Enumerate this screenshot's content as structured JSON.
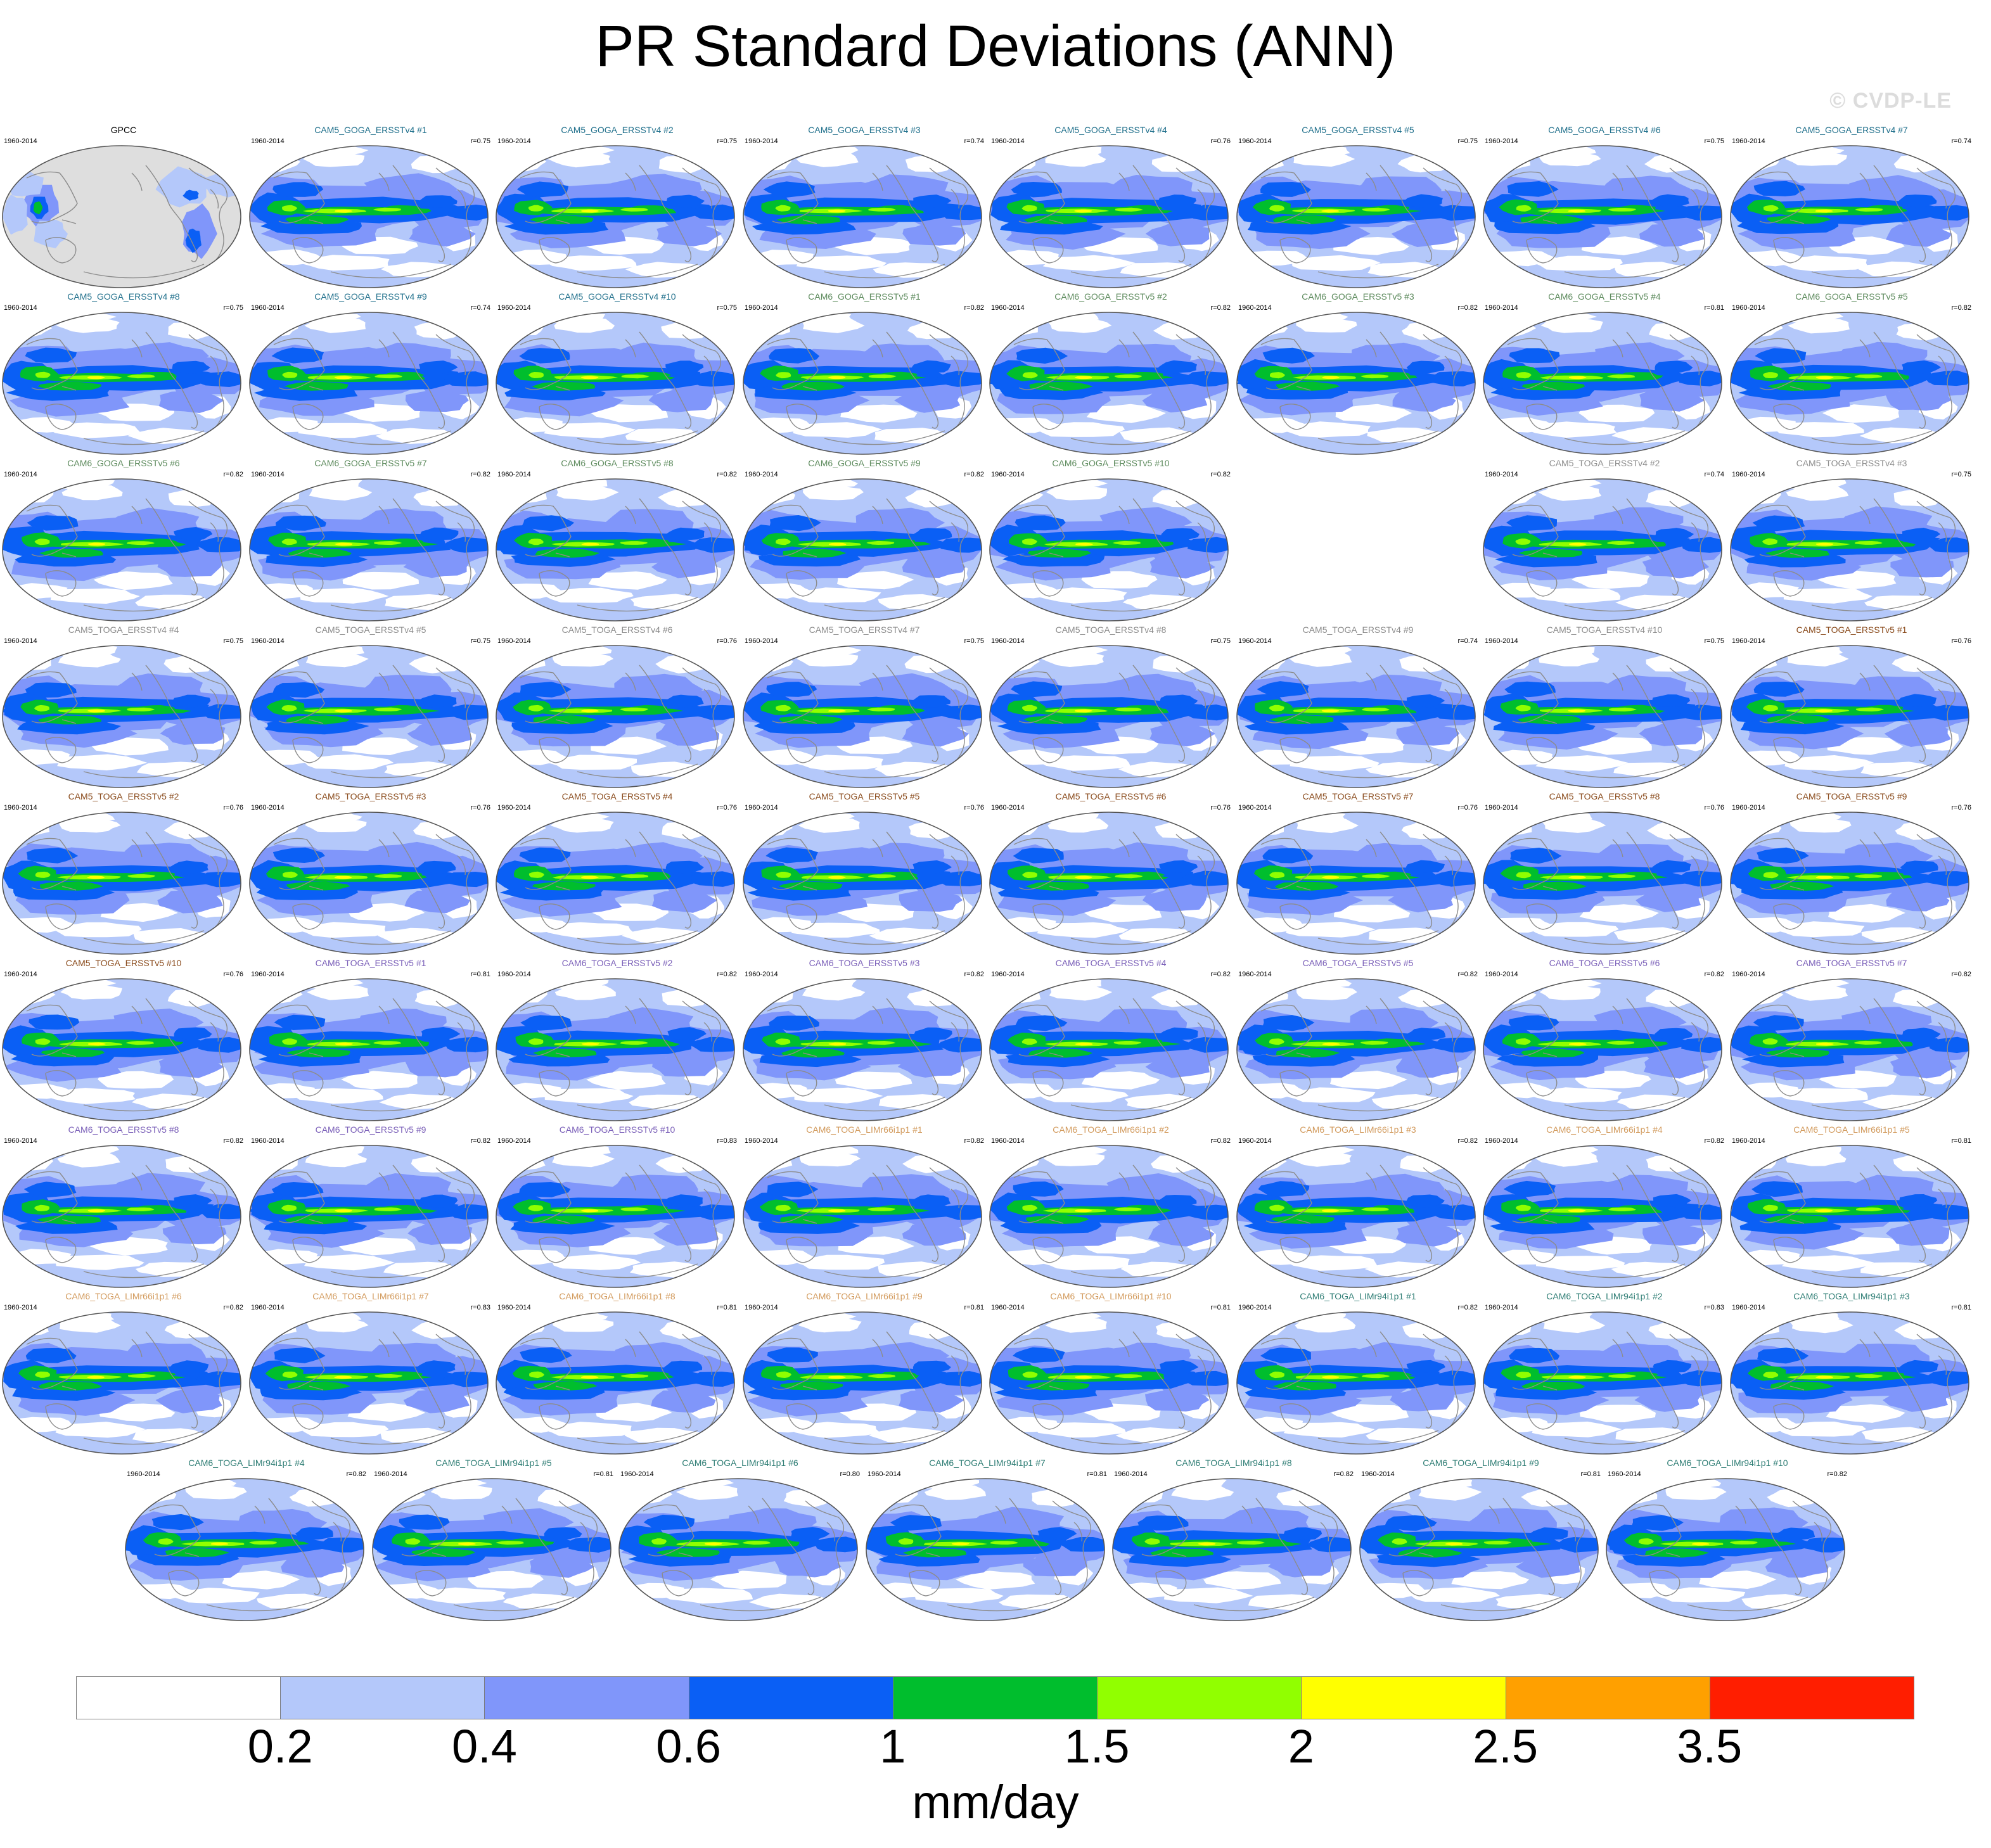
{
  "page": {
    "title": "PR Standard Deviations (ANN)",
    "watermark": "© CVDP-LE"
  },
  "colors": {
    "land_gray": "#dedede",
    "coast": "#8c8c8c",
    "ocean_white": "#ffffff",
    "title_GPCC": "#000000",
    "title_CAM5_GOGA": "#1f6f8b",
    "title_CAM6_GOGA": "#5c8a5c",
    "title_CAM5_TOGA_v4": "#8c8c8c",
    "title_CAM5_TOGA_v5": "#8a4b1c",
    "title_CAM6_TOGA_v5": "#7a5fb8",
    "title_CAM6_LIMr66": "#d29a5c",
    "title_CAM6_LIMr94": "#2e7d74"
  },
  "chart_data": {
    "type": "panel-maps",
    "title": "PR Standard Deviations (ANN)",
    "variable": "PR",
    "units": "mm/day",
    "season": "ANN",
    "colorbar": {
      "levels": [
        0.2,
        0.4,
        0.6,
        1,
        1.5,
        2,
        2.5,
        3.5
      ],
      "tick_labels": [
        "0.2",
        "0.4",
        "0.6",
        "1",
        "1.5",
        "2",
        "2.5",
        "3.5"
      ],
      "colors": [
        "#ffffff",
        "#b4c8fa",
        "#8096fa",
        "#0a5ff5",
        "#00be2d",
        "#91ff00",
        "#ffff00",
        "#ffa000",
        "#ff1e00"
      ],
      "units_label": "mm/day"
    },
    "rows": [
      [
        {
          "name": "GPCC",
          "years": "1960-2014",
          "r": "",
          "group": "GPCC",
          "obs": true
        },
        {
          "name": "CAM5_GOGA_ERSSTv4 #1",
          "years": "1960-2014",
          "r": "r=0.75",
          "group": "CAM5_GOGA"
        },
        {
          "name": "CAM5_GOGA_ERSSTv4 #2",
          "years": "1960-2014",
          "r": "r=0.75",
          "group": "CAM5_GOGA"
        },
        {
          "name": "CAM5_GOGA_ERSSTv4 #3",
          "years": "1960-2014",
          "r": "r=0.74",
          "group": "CAM5_GOGA"
        },
        {
          "name": "CAM5_GOGA_ERSSTv4 #4",
          "years": "1960-2014",
          "r": "r=0.76",
          "group": "CAM5_GOGA"
        },
        {
          "name": "CAM5_GOGA_ERSSTv4 #5",
          "years": "1960-2014",
          "r": "r=0.75",
          "group": "CAM5_GOGA"
        },
        {
          "name": "CAM5_GOGA_ERSSTv4 #6",
          "years": "1960-2014",
          "r": "r=0.75",
          "group": "CAM5_GOGA"
        },
        {
          "name": "CAM5_GOGA_ERSSTv4 #7",
          "years": "1960-2014",
          "r": "r=0.74",
          "group": "CAM5_GOGA"
        }
      ],
      [
        {
          "name": "CAM5_GOGA_ERSSTv4 #8",
          "years": "1960-2014",
          "r": "r=0.75",
          "group": "CAM5_GOGA"
        },
        {
          "name": "CAM5_GOGA_ERSSTv4 #9",
          "years": "1960-2014",
          "r": "r=0.74",
          "group": "CAM5_GOGA"
        },
        {
          "name": "CAM5_GOGA_ERSSTv4 #10",
          "years": "1960-2014",
          "r": "r=0.75",
          "group": "CAM5_GOGA"
        },
        {
          "name": "CAM6_GOGA_ERSSTv5 #1",
          "years": "1960-2014",
          "r": "r=0.82",
          "group": "CAM6_GOGA"
        },
        {
          "name": "CAM6_GOGA_ERSSTv5 #2",
          "years": "1960-2014",
          "r": "r=0.82",
          "group": "CAM6_GOGA"
        },
        {
          "name": "CAM6_GOGA_ERSSTv5 #3",
          "years": "1960-2014",
          "r": "r=0.82",
          "group": "CAM6_GOGA"
        },
        {
          "name": "CAM6_GOGA_ERSSTv5 #4",
          "years": "1960-2014",
          "r": "r=0.81",
          "group": "CAM6_GOGA"
        },
        {
          "name": "CAM6_GOGA_ERSSTv5 #5",
          "years": "1960-2014",
          "r": "r=0.82",
          "group": "CAM6_GOGA"
        }
      ],
      [
        {
          "name": "CAM6_GOGA_ERSSTv5 #6",
          "years": "1960-2014",
          "r": "r=0.82",
          "group": "CAM6_GOGA"
        },
        {
          "name": "CAM6_GOGA_ERSSTv5 #7",
          "years": "1960-2014",
          "r": "r=0.82",
          "group": "CAM6_GOGA"
        },
        {
          "name": "CAM6_GOGA_ERSSTv5 #8",
          "years": "1960-2014",
          "r": "r=0.82",
          "group": "CAM6_GOGA"
        },
        {
          "name": "CAM6_GOGA_ERSSTv5 #9",
          "years": "1960-2014",
          "r": "r=0.82",
          "group": "CAM6_GOGA"
        },
        {
          "name": "CAM6_GOGA_ERSSTv5 #10",
          "years": "1960-2014",
          "r": "r=0.82",
          "group": "CAM6_GOGA"
        },
        null,
        {
          "name": "CAM5_TOGA_ERSSTv4 #2",
          "years": "1960-2014",
          "r": "r=0.74",
          "group": "CAM5_TOGA_v4"
        },
        {
          "name": "CAM5_TOGA_ERSSTv4 #3",
          "years": "1960-2014",
          "r": "r=0.75",
          "group": "CAM5_TOGA_v4"
        }
      ],
      [
        {
          "name": "CAM5_TOGA_ERSSTv4 #4",
          "years": "1960-2014",
          "r": "r=0.75",
          "group": "CAM5_TOGA_v4"
        },
        {
          "name": "CAM5_TOGA_ERSSTv4 #5",
          "years": "1960-2014",
          "r": "r=0.75",
          "group": "CAM5_TOGA_v4"
        },
        {
          "name": "CAM5_TOGA_ERSSTv4 #6",
          "years": "1960-2014",
          "r": "r=0.76",
          "group": "CAM5_TOGA_v4"
        },
        {
          "name": "CAM5_TOGA_ERSSTv4 #7",
          "years": "1960-2014",
          "r": "r=0.75",
          "group": "CAM5_TOGA_v4"
        },
        {
          "name": "CAM5_TOGA_ERSSTv4 #8",
          "years": "1960-2014",
          "r": "r=0.75",
          "group": "CAM5_TOGA_v4"
        },
        {
          "name": "CAM5_TOGA_ERSSTv4 #9",
          "years": "1960-2014",
          "r": "r=0.74",
          "group": "CAM5_TOGA_v4"
        },
        {
          "name": "CAM5_TOGA_ERSSTv4 #10",
          "years": "1960-2014",
          "r": "r=0.75",
          "group": "CAM5_TOGA_v4"
        },
        {
          "name": "CAM5_TOGA_ERSSTv5 #1",
          "years": "1960-2014",
          "r": "r=0.76",
          "group": "CAM5_TOGA_v5"
        }
      ],
      [
        {
          "name": "CAM5_TOGA_ERSSTv5 #2",
          "years": "1960-2014",
          "r": "r=0.76",
          "group": "CAM5_TOGA_v5"
        },
        {
          "name": "CAM5_TOGA_ERSSTv5 #3",
          "years": "1960-2014",
          "r": "r=0.76",
          "group": "CAM5_TOGA_v5"
        },
        {
          "name": "CAM5_TOGA_ERSSTv5 #4",
          "years": "1960-2014",
          "r": "r=0.76",
          "group": "CAM5_TOGA_v5"
        },
        {
          "name": "CAM5_TOGA_ERSSTv5 #5",
          "years": "1960-2014",
          "r": "r=0.76",
          "group": "CAM5_TOGA_v5"
        },
        {
          "name": "CAM5_TOGA_ERSSTv5 #6",
          "years": "1960-2014",
          "r": "r=0.76",
          "group": "CAM5_TOGA_v5"
        },
        {
          "name": "CAM5_TOGA_ERSSTv5 #7",
          "years": "1960-2014",
          "r": "r=0.76",
          "group": "CAM5_TOGA_v5"
        },
        {
          "name": "CAM5_TOGA_ERSSTv5 #8",
          "years": "1960-2014",
          "r": "r=0.76",
          "group": "CAM5_TOGA_v5"
        },
        {
          "name": "CAM5_TOGA_ERSSTv5 #9",
          "years": "1960-2014",
          "r": "r=0.76",
          "group": "CAM5_TOGA_v5"
        }
      ],
      [
        {
          "name": "CAM5_TOGA_ERSSTv5 #10",
          "years": "1960-2014",
          "r": "r=0.76",
          "group": "CAM5_TOGA_v5"
        },
        {
          "name": "CAM6_TOGA_ERSSTv5 #1",
          "years": "1960-2014",
          "r": "r=0.81",
          "group": "CAM6_TOGA_v5"
        },
        {
          "name": "CAM6_TOGA_ERSSTv5 #2",
          "years": "1960-2014",
          "r": "r=0.82",
          "group": "CAM6_TOGA_v5"
        },
        {
          "name": "CAM6_TOGA_ERSSTv5 #3",
          "years": "1960-2014",
          "r": "r=0.82",
          "group": "CAM6_TOGA_v5"
        },
        {
          "name": "CAM6_TOGA_ERSSTv5 #4",
          "years": "1960-2014",
          "r": "r=0.82",
          "group": "CAM6_TOGA_v5"
        },
        {
          "name": "CAM6_TOGA_ERSSTv5 #5",
          "years": "1960-2014",
          "r": "r=0.82",
          "group": "CAM6_TOGA_v5"
        },
        {
          "name": "CAM6_TOGA_ERSSTv5 #6",
          "years": "1960-2014",
          "r": "r=0.82",
          "group": "CAM6_TOGA_v5"
        },
        {
          "name": "CAM6_TOGA_ERSSTv5 #7",
          "years": "1960-2014",
          "r": "r=0.82",
          "group": "CAM6_TOGA_v5"
        }
      ],
      [
        {
          "name": "CAM6_TOGA_ERSSTv5 #8",
          "years": "1960-2014",
          "r": "r=0.82",
          "group": "CAM6_TOGA_v5"
        },
        {
          "name": "CAM6_TOGA_ERSSTv5 #9",
          "years": "1960-2014",
          "r": "r=0.82",
          "group": "CAM6_TOGA_v5"
        },
        {
          "name": "CAM6_TOGA_ERSSTv5 #10",
          "years": "1960-2014",
          "r": "r=0.83",
          "group": "CAM6_TOGA_v5"
        },
        {
          "name": "CAM6_TOGA_LIMr66i1p1 #1",
          "years": "1960-2014",
          "r": "r=0.82",
          "group": "CAM6_LIMr66"
        },
        {
          "name": "CAM6_TOGA_LIMr66i1p1 #2",
          "years": "1960-2014",
          "r": "r=0.82",
          "group": "CAM6_LIMr66"
        },
        {
          "name": "CAM6_TOGA_LIMr66i1p1 #3",
          "years": "1960-2014",
          "r": "r=0.82",
          "group": "CAM6_LIMr66"
        },
        {
          "name": "CAM6_TOGA_LIMr66i1p1 #4",
          "years": "1960-2014",
          "r": "r=0.82",
          "group": "CAM6_LIMr66"
        },
        {
          "name": "CAM6_TOGA_LIMr66i1p1 #5",
          "years": "1960-2014",
          "r": "r=0.81",
          "group": "CAM6_LIMr66"
        }
      ],
      [
        {
          "name": "CAM6_TOGA_LIMr66i1p1 #6",
          "years": "1960-2014",
          "r": "r=0.82",
          "group": "CAM6_LIMr66"
        },
        {
          "name": "CAM6_TOGA_LIMr66i1p1 #7",
          "years": "1960-2014",
          "r": "r=0.83",
          "group": "CAM6_LIMr66"
        },
        {
          "name": "CAM6_TOGA_LIMr66i1p1 #8",
          "years": "1960-2014",
          "r": "r=0.81",
          "group": "CAM6_LIMr66"
        },
        {
          "name": "CAM6_TOGA_LIMr66i1p1 #9",
          "years": "1960-2014",
          "r": "r=0.81",
          "group": "CAM6_LIMr66"
        },
        {
          "name": "CAM6_TOGA_LIMr66i1p1 #10",
          "years": "1960-2014",
          "r": "r=0.81",
          "group": "CAM6_LIMr66"
        },
        {
          "name": "CAM6_TOGA_LIMr94i1p1 #1",
          "years": "1960-2014",
          "r": "r=0.82",
          "group": "CAM6_LIMr94"
        },
        {
          "name": "CAM6_TOGA_LIMr94i1p1 #2",
          "years": "1960-2014",
          "r": "r=0.83",
          "group": "CAM6_LIMr94"
        },
        {
          "name": "CAM6_TOGA_LIMr94i1p1 #3",
          "years": "1960-2014",
          "r": "r=0.81",
          "group": "CAM6_LIMr94"
        }
      ],
      [
        {
          "name": "CAM6_TOGA_LIMr94i1p1 #4",
          "years": "1960-2014",
          "r": "r=0.82",
          "group": "CAM6_LIMr94"
        },
        {
          "name": "CAM6_TOGA_LIMr94i1p1 #5",
          "years": "1960-2014",
          "r": "r=0.81",
          "group": "CAM6_LIMr94"
        },
        {
          "name": "CAM6_TOGA_LIMr94i1p1 #6",
          "years": "1960-2014",
          "r": "r=0.80",
          "group": "CAM6_LIMr94"
        },
        {
          "name": "CAM6_TOGA_LIMr94i1p1 #7",
          "years": "1960-2014",
          "r": "r=0.81",
          "group": "CAM6_LIMr94"
        },
        {
          "name": "CAM6_TOGA_LIMr94i1p1 #8",
          "years": "1960-2014",
          "r": "r=0.82",
          "group": "CAM6_LIMr94"
        },
        {
          "name": "CAM6_TOGA_LIMr94i1p1 #9",
          "years": "1960-2014",
          "r": "r=0.81",
          "group": "CAM6_LIMr94"
        },
        {
          "name": "CAM6_TOGA_LIMr94i1p1 #10",
          "years": "1960-2014",
          "r": "r=0.82",
          "group": "CAM6_LIMr94"
        }
      ]
    ]
  }
}
